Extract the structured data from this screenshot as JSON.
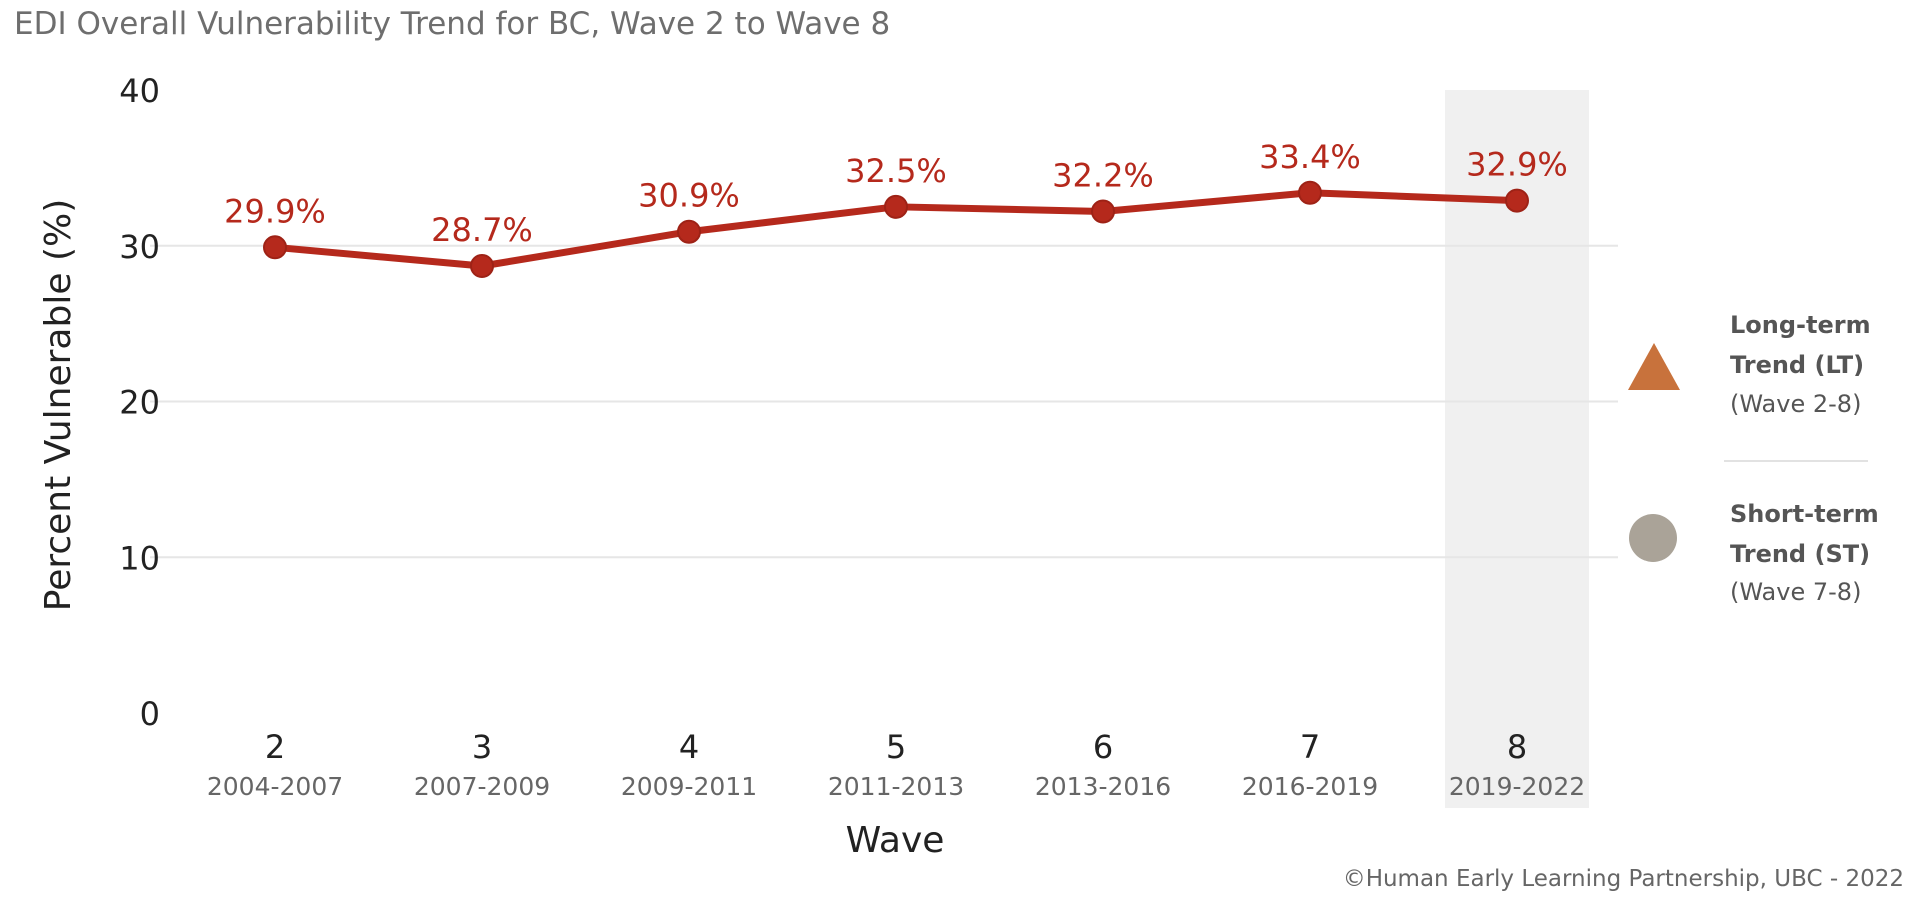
{
  "chart_data": {
    "type": "line",
    "title": "EDI Overall Vulnerability Trend for BC, Wave 2 to Wave 8",
    "xlabel": "Wave",
    "ylabel": "Percent Vulnerable (%)",
    "ylim": [
      0,
      40
    ],
    "yticks": [
      "0",
      "10",
      "20",
      "30",
      "40"
    ],
    "categories": [
      "2",
      "3",
      "4",
      "5",
      "6",
      "7",
      "8"
    ],
    "subcategories": [
      "2004-2007",
      "2007-2009",
      "2009-2011",
      "2011-2013",
      "2013-2016",
      "2016-2019",
      "2019-2022"
    ],
    "series": [
      {
        "values": [
          29.9,
          28.7,
          30.9,
          32.5,
          32.2,
          33.4,
          32.9
        ],
        "labels": [
          "29.9%",
          "28.7%",
          "30.9%",
          "32.5%",
          "32.2%",
          "33.4%",
          "32.9%"
        ],
        "color": "#b5291c"
      }
    ],
    "highlight_category": "8",
    "highlight_color": "#f0f0f0",
    "grid": true
  },
  "legend": {
    "long_term": {
      "title": "Long-term Trend (LT)",
      "range": "(Wave 2-8)",
      "icon": "triangle-icon",
      "color": "#c8723c"
    },
    "short_term": {
      "title": "Short-term Trend (ST)",
      "range": "(Wave 7-8)",
      "icon": "circle-icon",
      "color": "#aaa398"
    }
  },
  "copyright": "©Human Early Learning Partnership, UBC - 2022"
}
